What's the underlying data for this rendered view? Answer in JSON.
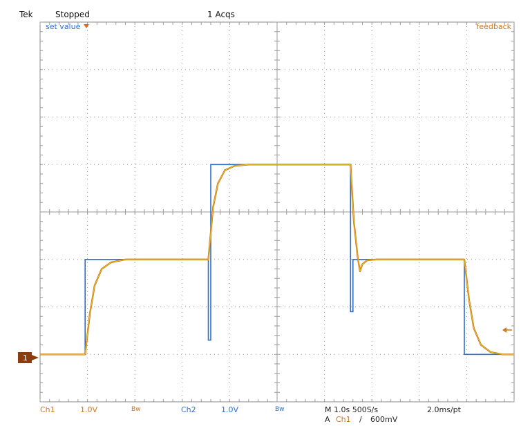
{
  "header": {
    "brand": "Tek",
    "status": "Stopped",
    "acquisitions": "1 Acqs"
  },
  "labels": {
    "set_value": "set value",
    "feedback": "feedback",
    "ch1_marker": "1"
  },
  "footer": {
    "ch1_name": "Ch1",
    "ch1_scale": "1.0V",
    "ch1_bw": "Bw",
    "ch2_name": "Ch2",
    "ch2_scale": "1.0V",
    "ch2_bw": "Bw",
    "timebase": "M 1.0s 500S/s",
    "record": "2.0ms/pt",
    "trigger_prefix": "A",
    "trigger_source": "Ch1",
    "trigger_slope": "/",
    "trigger_level": "600mV"
  },
  "colors": {
    "set_value": "#2a6fd0",
    "feedback": "#c9781f",
    "feedback_core": "#e9d020",
    "marker": "#8b3d12",
    "grid": "#9a9a9a"
  },
  "chart_data": {
    "type": "line",
    "xlim": [
      0,
      10
    ],
    "ylim": [
      -4,
      4
    ],
    "grid": true,
    "series": [
      {
        "name": "set value",
        "x": [
          0,
          0.95,
          0.95,
          3.55,
          3.55,
          3.6,
          3.6,
          6.55,
          6.55,
          6.6,
          6.6,
          8.95,
          8.95,
          10
        ],
        "y": [
          -3.0,
          -3.0,
          -1.0,
          -1.0,
          -2.7,
          -2.7,
          1.0,
          1.0,
          -2.1,
          -2.1,
          -1.0,
          -1.0,
          -3.0,
          -3.0
        ]
      },
      {
        "name": "feedback",
        "x": [
          0,
          0.95,
          1.05,
          1.15,
          1.3,
          1.5,
          1.8,
          3.55,
          3.65,
          3.75,
          3.9,
          4.1,
          4.4,
          6.55,
          6.62,
          6.7,
          6.75,
          6.8,
          6.9,
          7.1,
          8.95,
          9.05,
          9.15,
          9.3,
          9.5,
          9.75,
          10
        ],
        "y": [
          -3.0,
          -3.0,
          -2.15,
          -1.55,
          -1.2,
          -1.06,
          -1.0,
          -1.0,
          0.1,
          0.6,
          0.88,
          0.97,
          1.0,
          1.0,
          -0.2,
          -0.95,
          -1.25,
          -1.1,
          -1.02,
          -1.0,
          -1.0,
          -1.85,
          -2.45,
          -2.8,
          -2.95,
          -3.0,
          -3.0
        ]
      }
    ]
  }
}
